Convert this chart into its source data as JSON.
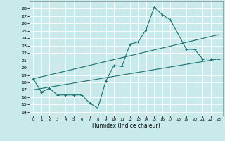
{
  "xlabel": "Humidex (Indice chaleur)",
  "bg_color": "#c8eaea",
  "grid_color": "#ffffff",
  "line_color": "#1a7070",
  "xlim": [
    -0.5,
    23.5
  ],
  "ylim": [
    13.5,
    29.0
  ],
  "yticks": [
    14,
    15,
    16,
    17,
    18,
    19,
    20,
    21,
    22,
    23,
    24,
    25,
    26,
    27,
    28
  ],
  "xticks": [
    0,
    1,
    2,
    3,
    4,
    5,
    6,
    7,
    8,
    9,
    10,
    11,
    12,
    13,
    14,
    15,
    16,
    17,
    18,
    19,
    20,
    21,
    22,
    23
  ],
  "series1_x": [
    0,
    1,
    2,
    3,
    4,
    5,
    6,
    7,
    8,
    9,
    10,
    11,
    12,
    13,
    14,
    15,
    16,
    17,
    18,
    19,
    20,
    21,
    22,
    23
  ],
  "series1_y": [
    18.5,
    16.7,
    17.2,
    16.3,
    16.3,
    16.3,
    16.3,
    15.2,
    14.5,
    18.2,
    20.3,
    20.2,
    23.2,
    23.5,
    25.2,
    28.2,
    27.2,
    26.5,
    24.5,
    22.5,
    22.5,
    21.2,
    21.2,
    21.2
  ],
  "upper_line_x": [
    0,
    23
  ],
  "upper_line_y": [
    18.5,
    24.5
  ],
  "lower_line_x": [
    0,
    23
  ],
  "lower_line_y": [
    17.0,
    21.2
  ]
}
